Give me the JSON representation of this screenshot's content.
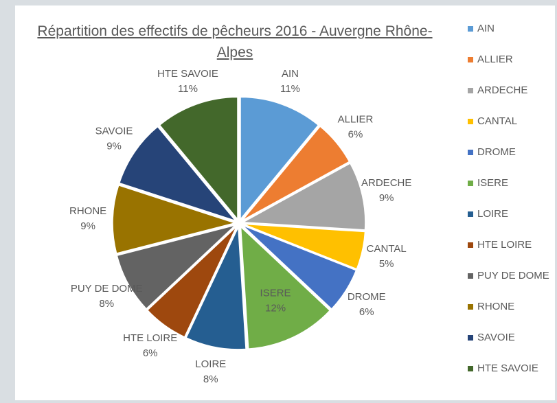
{
  "chart_data": {
    "type": "pie",
    "title": "Répartition des effectifs de pêcheurs 2016 - Auvergne Rhône-Alpes",
    "categories": [
      "AIN",
      "ALLIER",
      "ARDECHE",
      "CANTAL",
      "DROME",
      "ISERE",
      "LOIRE",
      "HTE LOIRE",
      "PUY DE DOME",
      "RHONE",
      "SAVOIE",
      "HTE SAVOIE"
    ],
    "values": [
      11,
      6,
      9,
      5,
      6,
      12,
      8,
      6,
      8,
      9,
      9,
      11
    ],
    "value_labels": [
      "11%",
      "6%",
      "9%",
      "5%",
      "6%",
      "12%",
      "8%",
      "6%",
      "8%",
      "9%",
      "9%",
      "11%"
    ],
    "colors": [
      "#5b9bd5",
      "#ed7d31",
      "#a5a5a5",
      "#ffc000",
      "#4472c4",
      "#70ad47",
      "#255e91",
      "#9e480e",
      "#636363",
      "#997300",
      "#264478",
      "#43682b"
    ],
    "legend": "right"
  }
}
